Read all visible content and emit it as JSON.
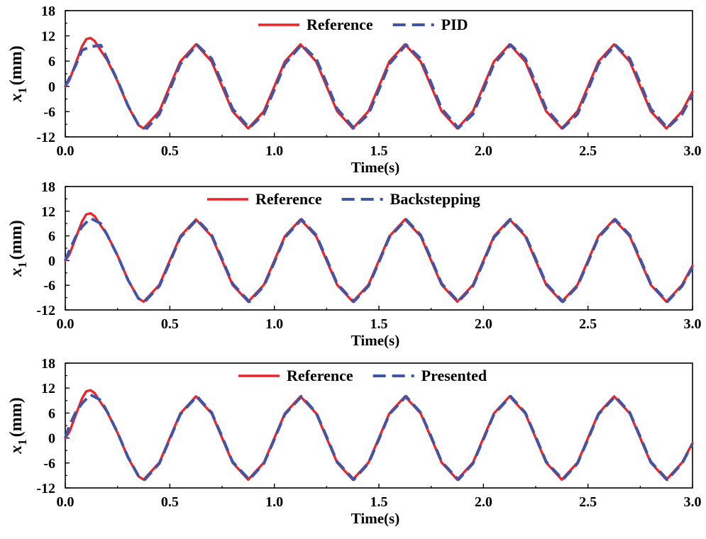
{
  "chart_data": [
    {
      "type": "line",
      "xlabel": "Time(s)",
      "ylabel": {
        "var": "x",
        "sub": "1",
        "unit": "(mm)"
      },
      "xlim": [
        0,
        3.0
      ],
      "ylim": [
        -12,
        18
      ],
      "xticks": [
        "0.0",
        "0.5",
        "1.0",
        "1.5",
        "2.0",
        "2.5",
        "3.0"
      ],
      "yticks": [
        "18",
        "12",
        "6",
        "0",
        "-6",
        "-12"
      ],
      "legend_position": "top-center",
      "series": [
        {
          "name": "Reference",
          "color": "#e8262b",
          "style": "solid",
          "x": [
            0,
            0.02,
            0.05,
            0.08,
            0.1,
            0.12,
            0.14,
            0.17,
            0.2,
            0.25,
            0.3,
            0.35,
            0.375,
            0.45,
            0.5,
            0.55,
            0.625,
            0.7,
            0.75,
            0.8,
            0.875,
            0.95,
            1.0,
            1.05,
            1.125,
            1.2,
            1.25,
            1.3,
            1.375,
            1.45,
            1.5,
            1.55,
            1.625,
            1.7,
            1.75,
            1.8,
            1.875,
            1.95,
            2.0,
            2.05,
            2.125,
            2.2,
            2.25,
            2.3,
            2.375,
            2.45,
            2.5,
            2.55,
            2.625,
            2.7,
            2.75,
            2.8,
            2.875,
            2.95,
            3.0
          ],
          "y": [
            0,
            1.5,
            5.5,
            9.5,
            11.2,
            11.5,
            10.8,
            8.5,
            6.3,
            1.2,
            -4.7,
            -9.2,
            -10,
            -5.9,
            0,
            5.9,
            10,
            5.9,
            0,
            -5.9,
            -10,
            -5.9,
            0,
            5.9,
            10,
            5.9,
            0,
            -5.9,
            -10,
            -5.9,
            0,
            5.9,
            10,
            5.9,
            0,
            -5.9,
            -10,
            -5.9,
            0,
            5.9,
            10,
            5.9,
            0,
            -5.9,
            -10,
            -5.9,
            0,
            5.9,
            10,
            5.9,
            0,
            -5.9,
            -10,
            -5.9,
            -1.2
          ]
        },
        {
          "name": "PID",
          "color": "#3f55a6",
          "style": "dashed",
          "x": [
            0,
            0.02,
            0.05,
            0.08,
            0.12,
            0.17,
            0.2,
            0.25,
            0.3,
            0.35,
            0.39,
            0.45,
            0.5,
            0.55,
            0.63,
            0.7,
            0.75,
            0.8,
            0.88,
            0.95,
            1.0,
            1.05,
            1.13,
            1.2,
            1.25,
            1.3,
            1.38,
            1.45,
            1.5,
            1.55,
            1.63,
            1.7,
            1.75,
            1.8,
            1.88,
            1.95,
            2.0,
            2.05,
            2.13,
            2.2,
            2.25,
            2.3,
            2.38,
            2.45,
            2.5,
            2.55,
            2.63,
            2.7,
            2.75,
            2.8,
            2.88,
            2.95,
            3.0
          ],
          "y": [
            0,
            2,
            5,
            8.6,
            9.4,
            9.8,
            6.6,
            1.4,
            -4.6,
            -9.1,
            -10,
            -6.6,
            -0.8,
            5.3,
            9.9,
            6.6,
            0.8,
            -5.3,
            -9.9,
            -6.6,
            -0.8,
            5.3,
            9.9,
            6.6,
            0.8,
            -5.3,
            -9.9,
            -6.6,
            -0.8,
            5.3,
            9.9,
            6.6,
            0.8,
            -5.3,
            -9.9,
            -6.6,
            -0.8,
            5.3,
            9.9,
            6.6,
            0.8,
            -5.3,
            -9.9,
            -6.6,
            -0.8,
            5.3,
            9.9,
            6.6,
            0.8,
            -5.3,
            -9.9,
            -6.6,
            -2
          ]
        }
      ]
    },
    {
      "type": "line",
      "xlabel": "Time(s)",
      "ylabel": {
        "var": "x",
        "sub": "1",
        "unit": "(mm)"
      },
      "xlim": [
        0,
        3.0
      ],
      "ylim": [
        -12,
        18
      ],
      "xticks": [
        "0.0",
        "0.5",
        "1.0",
        "1.5",
        "2.0",
        "2.5",
        "3.0"
      ],
      "yticks": [
        "18",
        "12",
        "6",
        "0",
        "-6",
        "-12"
      ],
      "legend_position": "top-center",
      "series": [
        {
          "name": "Reference",
          "color": "#e8262b",
          "style": "solid",
          "x": [
            0,
            0.02,
            0.05,
            0.08,
            0.1,
            0.12,
            0.14,
            0.17,
            0.2,
            0.25,
            0.3,
            0.35,
            0.375,
            0.45,
            0.5,
            0.55,
            0.625,
            0.7,
            0.75,
            0.8,
            0.875,
            0.95,
            1.0,
            1.05,
            1.125,
            1.2,
            1.25,
            1.3,
            1.375,
            1.45,
            1.5,
            1.55,
            1.625,
            1.7,
            1.75,
            1.8,
            1.875,
            1.95,
            2.0,
            2.05,
            2.125,
            2.2,
            2.25,
            2.3,
            2.375,
            2.45,
            2.5,
            2.55,
            2.625,
            2.7,
            2.75,
            2.8,
            2.875,
            2.95,
            3.0
          ],
          "y": [
            0,
            1.5,
            5.5,
            9.5,
            11.2,
            11.5,
            10.8,
            8.5,
            6.3,
            1.2,
            -4.7,
            -9.2,
            -10,
            -5.9,
            0,
            5.9,
            10,
            5.9,
            0,
            -5.9,
            -10,
            -5.9,
            0,
            5.9,
            10,
            5.9,
            0,
            -5.9,
            -10,
            -5.9,
            0,
            5.9,
            10,
            5.9,
            0,
            -5.9,
            -10,
            -5.9,
            0,
            5.9,
            10,
            5.9,
            0,
            -5.9,
            -10,
            -5.9,
            0,
            5.9,
            10,
            5.9,
            0,
            -5.9,
            -10,
            -5.9,
            -1.2
          ]
        },
        {
          "name": "Backstepping",
          "color": "#3f55a6",
          "style": "dashed",
          "x": [
            0,
            0.02,
            0.05,
            0.08,
            0.12,
            0.17,
            0.2,
            0.25,
            0.3,
            0.35,
            0.38,
            0.45,
            0.5,
            0.55,
            0.63,
            0.7,
            0.75,
            0.8,
            0.88,
            0.95,
            1.0,
            1.05,
            1.13,
            1.2,
            1.25,
            1.3,
            1.38,
            1.45,
            1.5,
            1.55,
            1.63,
            1.7,
            1.75,
            1.8,
            1.88,
            1.95,
            2.0,
            2.05,
            2.13,
            2.2,
            2.25,
            2.3,
            2.38,
            2.45,
            2.5,
            2.55,
            2.63,
            2.7,
            2.75,
            2.8,
            2.88,
            2.95,
            3.0
          ],
          "y": [
            0,
            2.5,
            5.8,
            8.2,
            10.3,
            9,
            6.3,
            1.2,
            -4.7,
            -9.2,
            -10,
            -6.2,
            -0.4,
            5.6,
            10,
            6.2,
            0.4,
            -5.6,
            -10,
            -6.2,
            -0.4,
            5.6,
            10,
            6.2,
            0.4,
            -5.6,
            -10,
            -6.2,
            -0.4,
            5.6,
            10,
            6.2,
            0.4,
            -5.6,
            -10,
            -6.2,
            -0.4,
            5.6,
            10,
            6.2,
            0.4,
            -5.6,
            -10,
            -6.2,
            -0.4,
            5.6,
            10,
            6.2,
            0.4,
            -5.6,
            -10,
            -6.2,
            -1.6
          ]
        }
      ]
    },
    {
      "type": "line",
      "xlabel": "Time(s)",
      "ylabel": {
        "var": "x",
        "sub": "1",
        "unit": "(mm)"
      },
      "xlim": [
        0,
        3.0
      ],
      "ylim": [
        -12,
        18
      ],
      "xticks": [
        "0.0",
        "0.5",
        "1.0",
        "1.5",
        "2.0",
        "2.5",
        "3.0"
      ],
      "yticks": [
        "18",
        "12",
        "6",
        "0",
        "-6",
        "-12"
      ],
      "legend_position": "top-center",
      "series": [
        {
          "name": "Reference",
          "color": "#e8262b",
          "style": "solid",
          "x": [
            0,
            0.02,
            0.05,
            0.08,
            0.1,
            0.12,
            0.14,
            0.17,
            0.2,
            0.25,
            0.3,
            0.35,
            0.375,
            0.45,
            0.5,
            0.55,
            0.625,
            0.7,
            0.75,
            0.8,
            0.875,
            0.95,
            1.0,
            1.05,
            1.125,
            1.2,
            1.25,
            1.3,
            1.375,
            1.45,
            1.5,
            1.55,
            1.625,
            1.7,
            1.75,
            1.8,
            1.875,
            1.95,
            2.0,
            2.05,
            2.125,
            2.2,
            2.25,
            2.3,
            2.375,
            2.45,
            2.5,
            2.55,
            2.625,
            2.7,
            2.75,
            2.8,
            2.875,
            2.95,
            3.0
          ],
          "y": [
            0,
            1.5,
            5.5,
            9.5,
            11.2,
            11.5,
            10.8,
            8.5,
            6.3,
            1.2,
            -4.7,
            -9.2,
            -10,
            -5.9,
            0,
            5.9,
            10,
            5.9,
            0,
            -5.9,
            -10,
            -5.9,
            0,
            5.9,
            10,
            5.9,
            0,
            -5.9,
            -10,
            -5.9,
            0,
            5.9,
            10,
            5.9,
            0,
            -5.9,
            -10,
            -5.9,
            0,
            5.9,
            10,
            5.9,
            0,
            -5.9,
            -10,
            -5.9,
            0,
            5.9,
            10,
            5.9,
            0,
            -5.9,
            -10,
            -5.9,
            -1.2
          ]
        },
        {
          "name": "Presented",
          "color": "#3f55a6",
          "style": "dashed",
          "x": [
            0,
            0.02,
            0.05,
            0.08,
            0.12,
            0.17,
            0.2,
            0.25,
            0.3,
            0.35,
            0.38,
            0.45,
            0.5,
            0.55,
            0.63,
            0.7,
            0.75,
            0.8,
            0.88,
            0.95,
            1.0,
            1.05,
            1.13,
            1.2,
            1.25,
            1.3,
            1.38,
            1.45,
            1.5,
            1.55,
            1.63,
            1.7,
            1.75,
            1.8,
            1.88,
            1.95,
            2.0,
            2.05,
            2.13,
            2.2,
            2.25,
            2.3,
            2.38,
            2.45,
            2.5,
            2.55,
            2.63,
            2.7,
            2.75,
            2.8,
            2.88,
            2.95,
            3.0
          ],
          "y": [
            0,
            3,
            6.2,
            8.3,
            10.4,
            9.1,
            6.4,
            1.3,
            -4.6,
            -9.1,
            -10,
            -6.1,
            -0.3,
            5.7,
            10,
            6.1,
            0.3,
            -5.7,
            -10,
            -6.1,
            -0.3,
            5.7,
            10,
            6.1,
            0.3,
            -5.7,
            -10,
            -6.1,
            -0.3,
            5.7,
            10,
            6.1,
            0.3,
            -5.7,
            -10,
            -6.1,
            -0.3,
            5.7,
            10,
            6.1,
            0.3,
            -5.7,
            -10,
            -6.1,
            -0.3,
            5.7,
            10,
            6.1,
            0.3,
            -5.7,
            -10,
            -6.1,
            -1.4
          ]
        }
      ]
    }
  ]
}
